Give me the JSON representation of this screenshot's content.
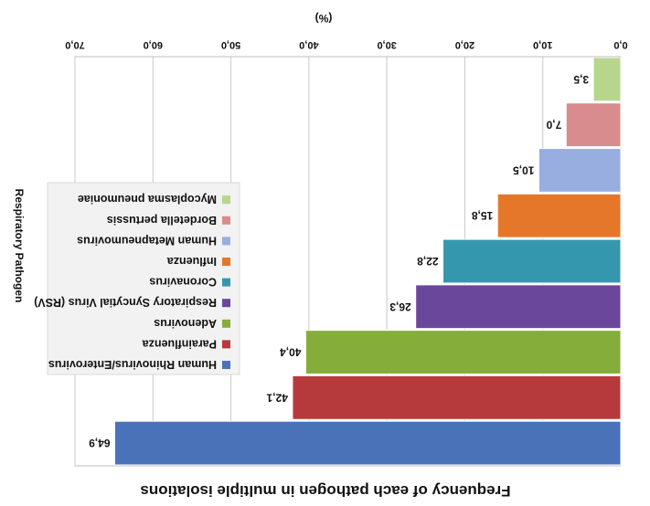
{
  "chart_data": {
    "type": "bar",
    "orientation": "horizontal",
    "title": "Frequency of each pathogen in multiple isolations",
    "xlabel": "(%)",
    "ylabel": "Respiratory Pathogen",
    "xlim": [
      0,
      70
    ],
    "xticks": [
      "0,0",
      "10,0",
      "20,0",
      "30,0",
      "40,0",
      "50,0",
      "60,0",
      "70,0"
    ],
    "grid": true,
    "legend_position": "right",
    "series": [
      {
        "name": "Human Rhinovirus/Enterovirus",
        "value": 64.9,
        "label": "64,9",
        "color": "#4a72b8"
      },
      {
        "name": "Parainfluenza",
        "value": 42.1,
        "label": "42,1",
        "color": "#b63a3c"
      },
      {
        "name": "Adenovirus",
        "value": 40.4,
        "label": "40,4",
        "color": "#84ad3a"
      },
      {
        "name": "Respiratory Syncytial Virus (RSV)",
        "value": 26.3,
        "label": "26,3",
        "color": "#6a479a"
      },
      {
        "name": "Coronavirus",
        "value": 22.8,
        "label": "22,8",
        "color": "#3597ad"
      },
      {
        "name": "Influenza",
        "value": 15.8,
        "label": "15,8",
        "color": "#e5772b"
      },
      {
        "name": "Human Metapneumovirus",
        "value": 10.5,
        "label": "10,5",
        "color": "#98aee0"
      },
      {
        "name": "Bordetella pertussis",
        "value": 7.0,
        "label": "7,0",
        "color": "#d98c8d"
      },
      {
        "name": "Mycoplasma pneumoniae",
        "value": 3.5,
        "label": "3,5",
        "color": "#b7d68c"
      }
    ]
  }
}
